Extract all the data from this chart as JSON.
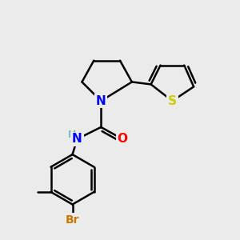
{
  "background_color": "#ebebeb",
  "atom_colors": {
    "N": "#0000FF",
    "O": "#FF0000",
    "S": "#cccc00",
    "Br": "#cc7700",
    "C": "#000000",
    "H": "#7ab8b8"
  },
  "bond_lw": 1.8,
  "fig_size": [
    3.0,
    3.0
  ],
  "dpi": 100
}
